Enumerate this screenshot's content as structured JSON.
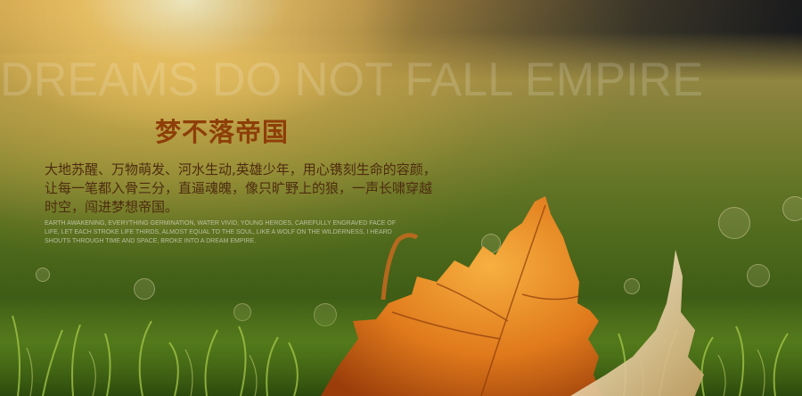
{
  "banner": {
    "background_title": "DREAMS DO NOT FALL EMPIRE",
    "heading": "梦不落帝国",
    "paragraph_cn": [
      "大地苏醒、万物萌发、河水生动,英雄少年，用心镌刻生命的容颜，",
      "让每一笔都入骨三分，直逼魂魄，像只旷野上的狼，一声长啸穿越",
      "时空，闯进梦想帝国。"
    ],
    "paragraph_en": [
      "EARTH AWAKENING, EVERYTHING GERMINATION, WATER VIVID, YOUNG HEROES, CAREFULLY ENGRAVED FACE OF",
      "LIFE, LET EACH STROKE LIFE THIRDS, ALMOST EQUAL TO THE SOUL, LIKE A WOLF ON THE WILDERNESS, I HEARD",
      "SHOUTS THROUGH TIME AND SPACE, BROKE INTO A DREAM EMPIRE."
    ]
  },
  "colors": {
    "heading": "#8e3e08",
    "body_text": "#4e2c10",
    "leaf_orange": "#e07a1c",
    "grass_green": "#4f6a1c"
  }
}
